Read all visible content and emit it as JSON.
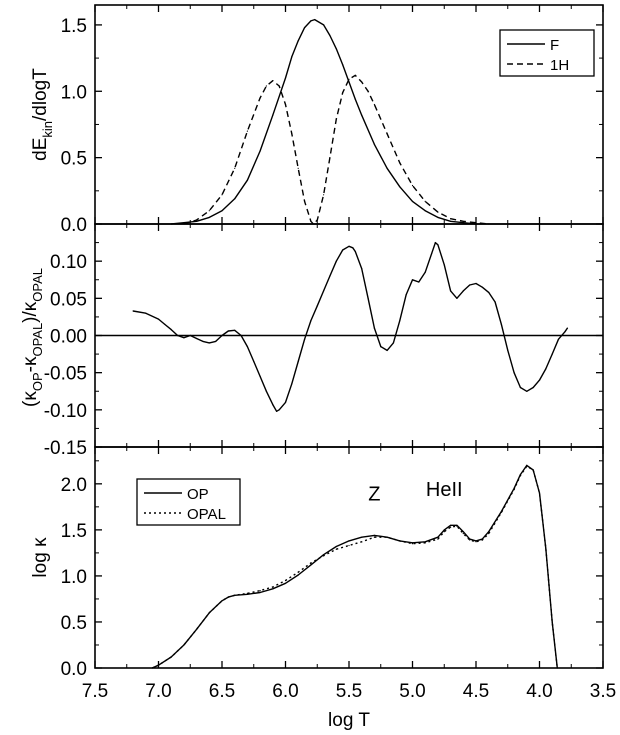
{
  "figure": {
    "xlabel": "log T",
    "x_ticks": [
      "7.5",
      "7.0",
      "6.5",
      "6.0",
      "5.5",
      "5.0",
      "4.5",
      "4.0",
      "3.5"
    ]
  },
  "chart_data": [
    {
      "type": "line",
      "panel": "top",
      "ylabel": "dE_kin/dlogT",
      "ylabel_main": "dE",
      "ylabel_sub": "kin",
      "ylabel_tail": "/dlogT",
      "xlim": [
        7.5,
        3.5
      ],
      "x_reversed": true,
      "ylim": [
        0.0,
        1.65
      ],
      "y_ticks": [
        "0.0",
        "0.5",
        "1.0",
        "1.5"
      ],
      "legend_position": "top-right",
      "series": [
        {
          "name": "F",
          "style": "solid",
          "x": [
            6.9,
            6.8,
            6.7,
            6.6,
            6.5,
            6.4,
            6.3,
            6.2,
            6.1,
            6.0,
            5.95,
            5.9,
            5.85,
            5.8,
            5.77,
            5.7,
            5.65,
            5.6,
            5.55,
            5.5,
            5.45,
            5.4,
            5.3,
            5.2,
            5.1,
            5.0,
            4.9,
            4.8,
            4.7,
            4.6,
            4.5
          ],
          "values": [
            0.0,
            0.01,
            0.02,
            0.05,
            0.1,
            0.19,
            0.33,
            0.55,
            0.82,
            1.1,
            1.26,
            1.38,
            1.48,
            1.53,
            1.54,
            1.5,
            1.42,
            1.32,
            1.2,
            1.07,
            0.94,
            0.82,
            0.6,
            0.42,
            0.28,
            0.17,
            0.1,
            0.05,
            0.02,
            0.01,
            0.0
          ]
        },
        {
          "name": "1H",
          "style": "dashed",
          "x": [
            6.8,
            6.7,
            6.6,
            6.5,
            6.4,
            6.3,
            6.2,
            6.15,
            6.1,
            6.05,
            6.0,
            5.95,
            5.9,
            5.85,
            5.8,
            5.78,
            5.75,
            5.7,
            5.65,
            5.6,
            5.55,
            5.5,
            5.45,
            5.4,
            5.35,
            5.3,
            5.2,
            5.1,
            5.0,
            4.9,
            4.8,
            4.7,
            4.6,
            4.5,
            4.4
          ],
          "values": [
            0.0,
            0.03,
            0.1,
            0.22,
            0.42,
            0.7,
            0.95,
            1.04,
            1.08,
            1.04,
            0.9,
            0.68,
            0.42,
            0.17,
            0.02,
            0.0,
            0.03,
            0.22,
            0.5,
            0.79,
            0.99,
            1.09,
            1.12,
            1.07,
            1.0,
            0.9,
            0.68,
            0.46,
            0.29,
            0.17,
            0.09,
            0.04,
            0.02,
            0.01,
            0.0
          ]
        }
      ]
    },
    {
      "type": "line",
      "panel": "middle",
      "ylabel": "(κ_OP-κ_OPAL)/κ_OPAL",
      "ylabel_parts": [
        "(κ",
        "OP",
        "-κ",
        "OPAL",
        ")/κ",
        "OPAL"
      ],
      "xlim": [
        7.5,
        3.5
      ],
      "x_reversed": true,
      "ylim": [
        -0.15,
        0.15
      ],
      "y_ticks": [
        "-0.15",
        "-0.10",
        "-0.05",
        "0.00",
        "0.05",
        "0.10"
      ],
      "zero_line": true,
      "series": [
        {
          "style": "solid",
          "x": [
            7.2,
            7.1,
            7.0,
            6.95,
            6.9,
            6.85,
            6.8,
            6.75,
            6.7,
            6.65,
            6.6,
            6.55,
            6.5,
            6.45,
            6.4,
            6.35,
            6.3,
            6.25,
            6.2,
            6.15,
            6.1,
            6.07,
            6.05,
            6.0,
            5.95,
            5.9,
            5.85,
            5.8,
            5.75,
            5.7,
            5.65,
            5.6,
            5.55,
            5.5,
            5.47,
            5.45,
            5.4,
            5.35,
            5.3,
            5.25,
            5.2,
            5.15,
            5.1,
            5.05,
            5.0,
            4.95,
            4.9,
            4.85,
            4.82,
            4.8,
            4.75,
            4.7,
            4.65,
            4.6,
            4.55,
            4.5,
            4.45,
            4.4,
            4.35,
            4.3,
            4.25,
            4.2,
            4.15,
            4.1,
            4.05,
            4.0,
            3.95,
            3.9,
            3.85,
            3.8,
            3.78
          ],
          "values": [
            0.033,
            0.03,
            0.022,
            0.015,
            0.008,
            0.0,
            -0.003,
            0.0,
            -0.004,
            -0.008,
            -0.01,
            -0.008,
            0.0,
            0.006,
            0.007,
            0.0,
            -0.015,
            -0.035,
            -0.055,
            -0.075,
            -0.093,
            -0.102,
            -0.1,
            -0.09,
            -0.065,
            -0.035,
            -0.005,
            0.02,
            0.04,
            0.06,
            0.08,
            0.1,
            0.115,
            0.12,
            0.118,
            0.113,
            0.09,
            0.05,
            0.01,
            -0.015,
            -0.02,
            -0.01,
            0.02,
            0.055,
            0.075,
            0.072,
            0.085,
            0.11,
            0.125,
            0.122,
            0.095,
            0.06,
            0.05,
            0.06,
            0.068,
            0.07,
            0.065,
            0.058,
            0.045,
            0.015,
            -0.02,
            -0.05,
            -0.07,
            -0.075,
            -0.07,
            -0.06,
            -0.045,
            -0.025,
            -0.005,
            0.005,
            0.01
          ]
        }
      ]
    },
    {
      "type": "line",
      "panel": "bottom",
      "ylabel": "log κ",
      "xlabel": "log T",
      "xlim": [
        7.5,
        3.5
      ],
      "x_reversed": true,
      "ylim": [
        0.0,
        2.4
      ],
      "y_ticks": [
        "0.0",
        "0.5",
        "1.0",
        "1.5",
        "2.0"
      ],
      "legend_position": "top-left",
      "annotations": [
        {
          "text": "Z",
          "x": 5.3,
          "y": 1.82
        },
        {
          "text": "HeII",
          "x": 4.75,
          "y": 1.87
        }
      ],
      "series": [
        {
          "name": "OP",
          "style": "solid",
          "x": [
            7.05,
            7.0,
            6.9,
            6.8,
            6.7,
            6.6,
            6.5,
            6.45,
            6.4,
            6.3,
            6.2,
            6.1,
            6.0,
            5.9,
            5.8,
            5.7,
            5.6,
            5.5,
            5.4,
            5.3,
            5.2,
            5.1,
            5.0,
            4.9,
            4.8,
            4.75,
            4.7,
            4.65,
            4.6,
            4.55,
            4.5,
            4.45,
            4.4,
            4.3,
            4.2,
            4.15,
            4.1,
            4.05,
            4.0,
            3.95,
            3.9,
            3.86
          ],
          "values": [
            0.0,
            0.03,
            0.12,
            0.25,
            0.42,
            0.6,
            0.73,
            0.77,
            0.79,
            0.8,
            0.82,
            0.86,
            0.92,
            1.01,
            1.12,
            1.23,
            1.32,
            1.38,
            1.42,
            1.44,
            1.42,
            1.38,
            1.36,
            1.37,
            1.42,
            1.5,
            1.55,
            1.55,
            1.48,
            1.4,
            1.38,
            1.4,
            1.48,
            1.7,
            1.95,
            2.1,
            2.2,
            2.15,
            1.9,
            1.3,
            0.5,
            0.0
          ]
        },
        {
          "name": "OPAL",
          "style": "dotted",
          "x": [
            7.05,
            7.0,
            6.9,
            6.8,
            6.7,
            6.6,
            6.5,
            6.45,
            6.4,
            6.3,
            6.2,
            6.1,
            6.0,
            5.9,
            5.8,
            5.7,
            5.6,
            5.5,
            5.4,
            5.3,
            5.2,
            5.1,
            5.0,
            4.9,
            4.8,
            4.75,
            4.7,
            4.65,
            4.6,
            4.55,
            4.5,
            4.45,
            4.4,
            4.3,
            4.2,
            4.15,
            4.1,
            4.05,
            4.0,
            3.95,
            3.9,
            3.86
          ],
          "values": [
            0.0,
            0.03,
            0.12,
            0.25,
            0.42,
            0.6,
            0.73,
            0.77,
            0.79,
            0.81,
            0.84,
            0.88,
            0.95,
            1.04,
            1.14,
            1.22,
            1.29,
            1.33,
            1.37,
            1.42,
            1.42,
            1.38,
            1.35,
            1.36,
            1.4,
            1.48,
            1.53,
            1.54,
            1.46,
            1.39,
            1.37,
            1.39,
            1.46,
            1.69,
            1.94,
            2.09,
            2.19,
            2.15,
            1.9,
            1.3,
            0.5,
            0.0
          ]
        }
      ]
    }
  ]
}
